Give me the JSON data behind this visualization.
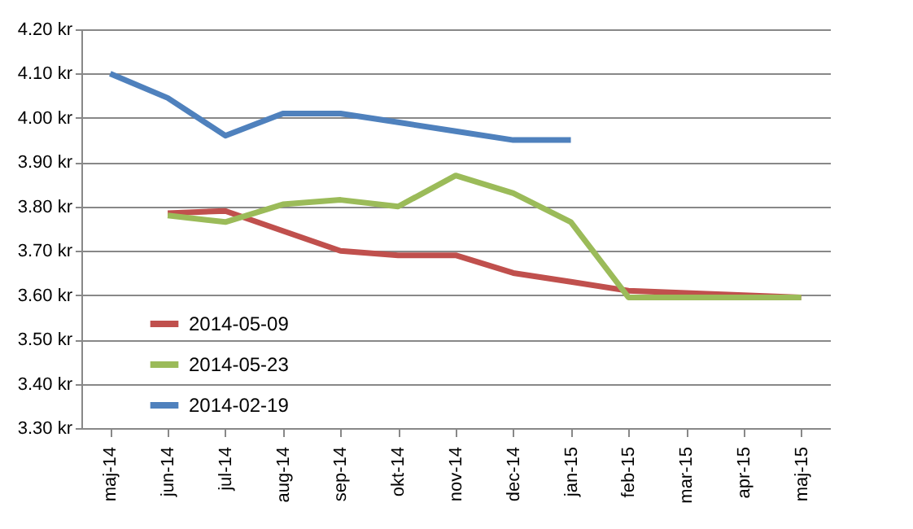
{
  "chart_data": {
    "type": "line",
    "categories": [
      "maj-14",
      "jun-14",
      "jul-14",
      "aug-14",
      "sep-14",
      "okt-14",
      "nov-14",
      "dec-14",
      "jan-15",
      "feb-15",
      "mar-15",
      "apr-15",
      "maj-15"
    ],
    "series": [
      {
        "name": "2014-05-09",
        "color": "#c0504d",
        "values": [
          null,
          3.785,
          3.79,
          3.745,
          3.7,
          3.69,
          3.69,
          3.65,
          3.63,
          3.61,
          3.605,
          3.6,
          3.595
        ]
      },
      {
        "name": "2014-05-23",
        "color": "#9bbb59",
        "values": [
          null,
          3.78,
          3.765,
          3.805,
          3.815,
          3.8,
          3.87,
          3.83,
          3.765,
          3.595,
          3.595,
          3.595,
          3.595
        ]
      },
      {
        "name": "2014-02-19",
        "color": "#4f81bd",
        "values": [
          4.1,
          4.045,
          3.96,
          4.01,
          4.01,
          3.99,
          3.97,
          3.95,
          3.95,
          null,
          null,
          null,
          null
        ]
      }
    ],
    "ylim": [
      3.3,
      4.2
    ],
    "yticks": [
      {
        "value": 3.3,
        "label": "3.30 kr"
      },
      {
        "value": 3.4,
        "label": "3.40 kr"
      },
      {
        "value": 3.5,
        "label": "3.50 kr"
      },
      {
        "value": 3.6,
        "label": "3.60 kr"
      },
      {
        "value": 3.7,
        "label": "3.70 kr"
      },
      {
        "value": 3.8,
        "label": "3.80 kr"
      },
      {
        "value": 3.9,
        "label": "3.90 kr"
      },
      {
        "value": 4.0,
        "label": "4.00 kr"
      },
      {
        "value": 4.1,
        "label": "4.10 kr"
      },
      {
        "value": 4.2,
        "label": "4.20 kr"
      }
    ],
    "grid": "y",
    "legend": "bottom left",
    "marker": "none",
    "line_style": "solid"
  }
}
